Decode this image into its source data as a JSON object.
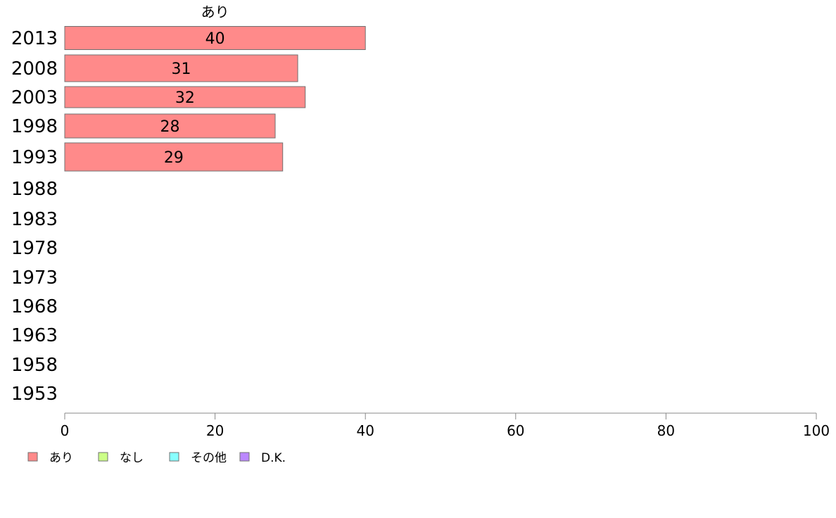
{
  "chart_data": {
    "type": "bar",
    "orientation": "horizontal",
    "stacked": true,
    "categories": [
      "2013",
      "2008",
      "2003",
      "1998",
      "1993",
      "1988",
      "1983",
      "1978",
      "1973",
      "1968",
      "1963",
      "1958",
      "1953"
    ],
    "series": [
      {
        "name": "あり",
        "color": "#ff8a8a",
        "values": [
          40,
          31,
          32,
          28,
          29,
          null,
          null,
          null,
          null,
          null,
          null,
          null,
          null
        ]
      },
      {
        "name": "なし",
        "color": "#ccff88",
        "values": [
          null,
          null,
          null,
          null,
          null,
          null,
          null,
          null,
          null,
          null,
          null,
          null,
          null
        ]
      },
      {
        "name": "その他",
        "color": "#88ffff",
        "values": [
          null,
          null,
          null,
          null,
          null,
          null,
          null,
          null,
          null,
          null,
          null,
          null,
          null
        ]
      },
      {
        "name": "D.K.",
        "color": "#bb88ff",
        "values": [
          null,
          null,
          null,
          null,
          null,
          null,
          null,
          null,
          null,
          null,
          null,
          null,
          null
        ]
      }
    ],
    "top_series_label": "あり",
    "xlim": [
      0,
      100
    ],
    "xticks": [
      0,
      20,
      40,
      60,
      80,
      100
    ],
    "grid": false,
    "legend_position": "bottom-left",
    "bar_value_labels": true
  }
}
